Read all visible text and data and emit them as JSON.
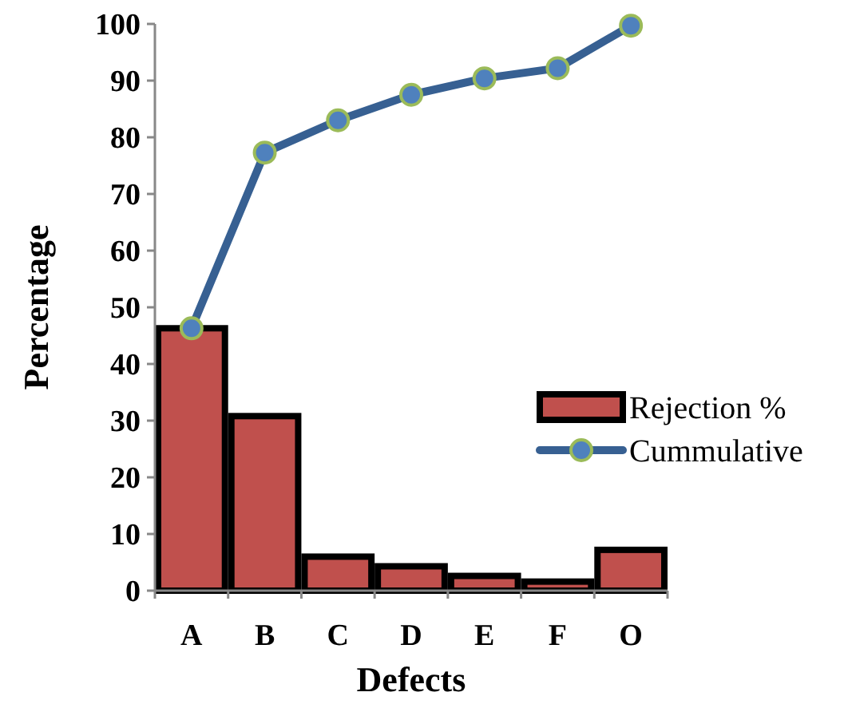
{
  "chart_data": {
    "type": "bar",
    "xlabel": "Defects",
    "ylabel": "Percentage",
    "categories": [
      "A",
      "B",
      "C",
      "D",
      "E",
      "F",
      "O"
    ],
    "series": [
      {
        "name": "Rejection %",
        "color": "#c0504d",
        "values": [
          46.3,
          30.8,
          6,
          4.3,
          2.6,
          1.6,
          7.2
        ]
      },
      {
        "name": "Cummulative",
        "type": "line",
        "color": "#376092",
        "values": [
          46.3,
          77.3,
          83,
          87.5,
          90.4,
          92.2,
          99.7
        ]
      }
    ],
    "ylim": [
      0,
      100
    ],
    "yticks": [
      0,
      10,
      20,
      30,
      40,
      50,
      60,
      70,
      80,
      90,
      100
    ],
    "marker": "circle",
    "legend": "right",
    "grid": false
  }
}
